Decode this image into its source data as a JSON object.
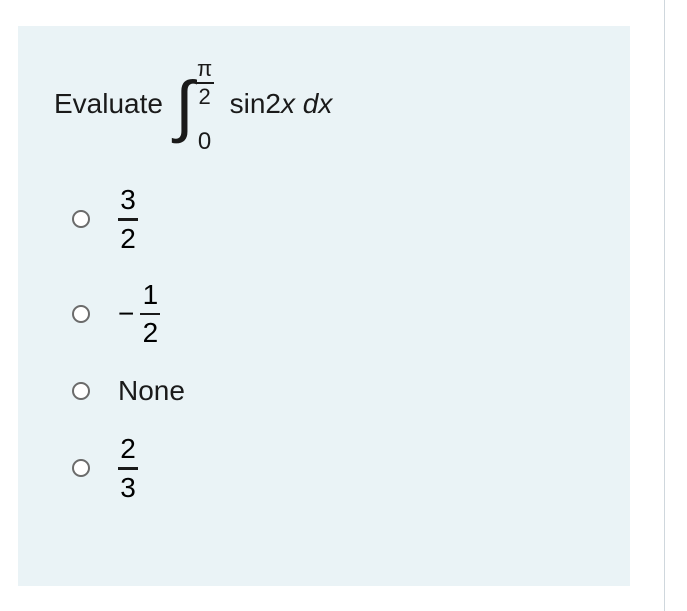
{
  "card": {
    "background_color": "#eaf3f6"
  },
  "question": {
    "prompt": "Evaluate",
    "integral": {
      "upper_num": "π",
      "upper_den": "2",
      "lower": "0",
      "integrand_func": "sin2",
      "integrand_var": "x",
      "differential": " dx"
    }
  },
  "options": [
    {
      "type": "fraction",
      "num": "3",
      "den": "2",
      "negative": false
    },
    {
      "type": "fraction",
      "num": "1",
      "den": "2",
      "negative": true
    },
    {
      "type": "text",
      "label": "None"
    },
    {
      "type": "fraction",
      "num": "2",
      "den": "3",
      "negative": false
    }
  ]
}
